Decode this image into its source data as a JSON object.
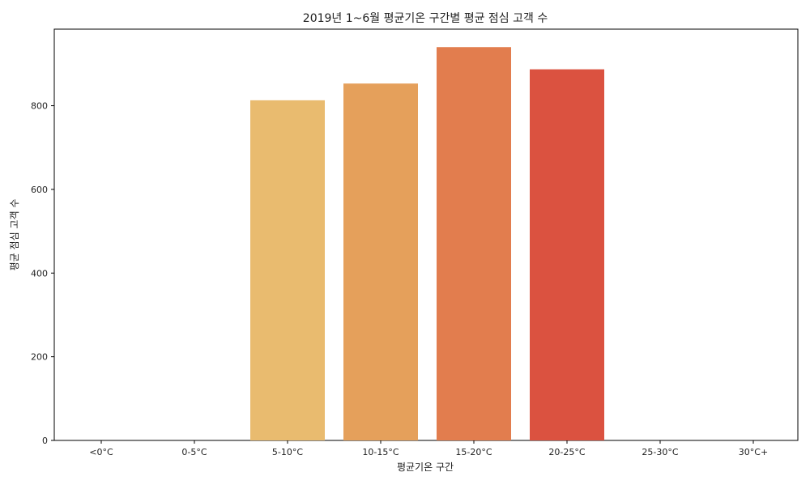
{
  "chart_data": {
    "type": "bar",
    "title": "2019년 1~6월 평균기온 구간별 평균 점심 고객 수",
    "xlabel": "평균기온 구간",
    "ylabel": "평균 점심 고객 수",
    "categories": [
      "<0°C",
      "0-5°C",
      "5-10°C",
      "10-15°C",
      "15-20°C",
      "20-25°C",
      "25-30°C",
      "30°C+"
    ],
    "values": [
      null,
      null,
      813,
      853,
      940,
      887,
      null,
      null
    ],
    "colors": [
      null,
      null,
      "#e9bb6f",
      "#e5a05b",
      "#e27d4e",
      "#db5240",
      null,
      null
    ],
    "ylim": [
      0,
      983
    ],
    "yticks": [
      0,
      200,
      400,
      600,
      800
    ],
    "grid": false,
    "legend": "none"
  }
}
